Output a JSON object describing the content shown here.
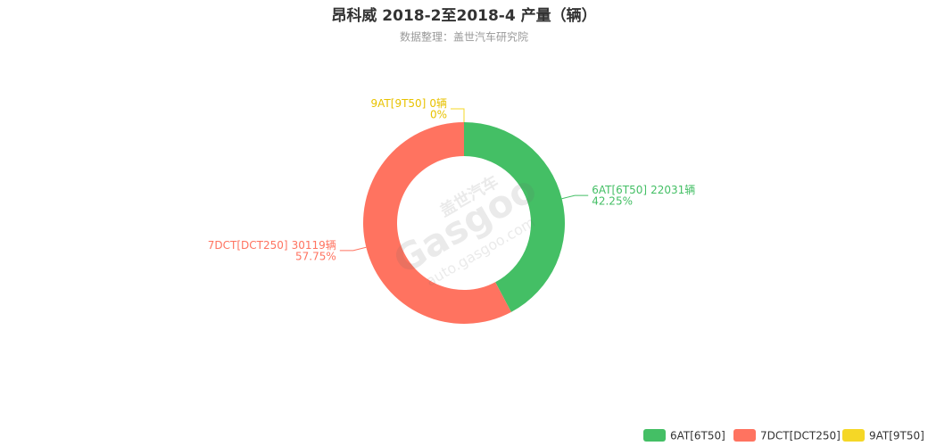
{
  "chart_data": {
    "type": "donut",
    "title": "昂科威 2018-2至2018-4 产量（辆）",
    "subtitle": "数据整理：盖世汽车研究院",
    "watermark": [
      "盖世汽车",
      "Gasgoo",
      "auto.gasgoo.com"
    ],
    "categories": [
      "6AT[6T50]",
      "7DCT[DCT250]",
      "9AT[9T50]"
    ],
    "values": [
      22031,
      30119,
      0
    ],
    "value_labels": [
      "22031辆",
      "30119辆",
      "0辆"
    ],
    "percents": [
      42.25,
      57.75,
      0
    ],
    "percent_labels": [
      "42.25%",
      "57.75%",
      "0%"
    ],
    "colors": [
      "#44bf65",
      "#ff7360",
      "#f5d726"
    ],
    "legend": "bottom-right"
  }
}
